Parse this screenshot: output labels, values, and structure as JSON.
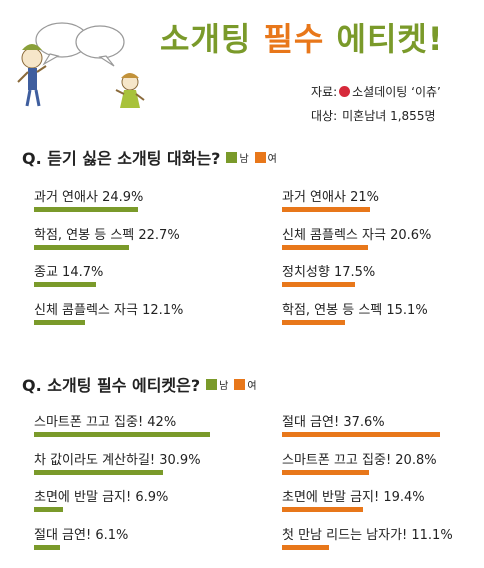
{
  "title": {
    "part1": "소개팅",
    "part2": "필수",
    "part3": "에티켓!"
  },
  "source": {
    "label": "자료:",
    "name": "소셜데이팅 ‘이츄’"
  },
  "target": {
    "label": "대상:",
    "value": "미혼남녀 1,855명"
  },
  "colors": {
    "male": "#7a9a2a",
    "female": "#e8771a"
  },
  "legend": {
    "male": "남",
    "female": "여"
  },
  "chart_data": [
    {
      "type": "bar",
      "title": "Q. 듣기 싫은 소개팅 대화는?",
      "series": [
        {
          "name": "남",
          "labels": [
            "과거 연애사 24.9%",
            "학점, 연봉 등 스펙 22.7%",
            "종교 14.7%",
            "신체 콤플렉스 자극 12.1%"
          ],
          "values": [
            24.9,
            22.7,
            14.7,
            12.1
          ]
        },
        {
          "name": "여",
          "labels": [
            "과거 연애사 21%",
            "신체 콤플렉스 자극 20.6%",
            "정치성향 17.5%",
            "학점, 연봉 등 스펙 15.1%"
          ],
          "values": [
            21,
            20.6,
            17.5,
            15.1
          ]
        }
      ]
    },
    {
      "type": "bar",
      "title": "Q. 소개팅 필수 에티켓은?",
      "series": [
        {
          "name": "남",
          "labels": [
            "스마트폰 끄고 집중! 42%",
            "차 값이라도 계산하길! 30.9%",
            "초면에 반말 금지! 6.9%",
            "절대 금연! 6.1%"
          ],
          "values": [
            42,
            30.9,
            6.9,
            6.1
          ]
        },
        {
          "name": "여",
          "labels": [
            "절대 금연! 37.6%",
            "스마트폰 끄고 집중! 20.8%",
            "초면에 반말 금지! 19.4%",
            "첫 만남 리드는 남자가! 11.1%"
          ],
          "values": [
            37.6,
            20.8,
            19.4,
            11.1
          ]
        }
      ]
    }
  ]
}
